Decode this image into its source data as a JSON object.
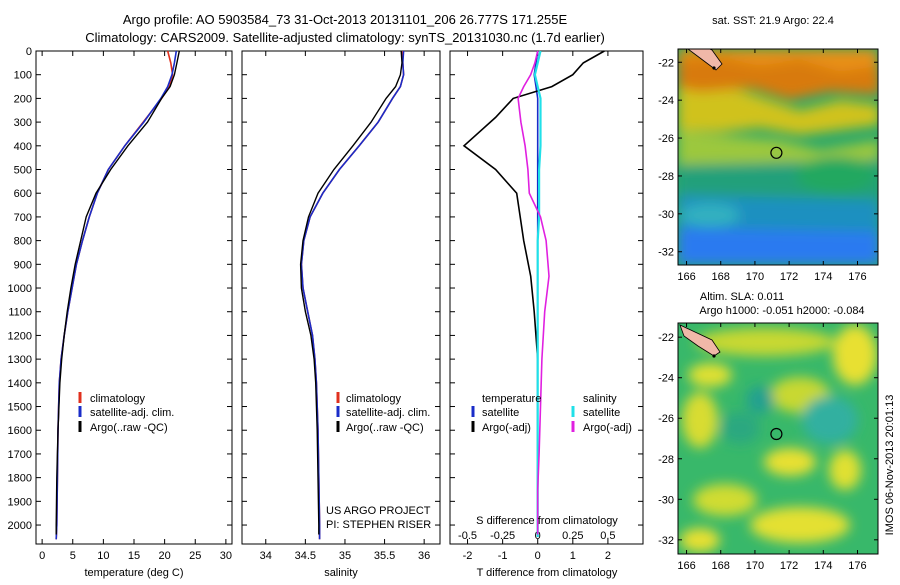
{
  "header": {
    "line1": "Argo profile: AO 5903584_73 31-Oct-2013 20131101_206 26.777S 171.255E",
    "line2": "Climatology: CARS2009. Satellite-adjusted climatology: synTS_20131030.nc (1.7d earlier)"
  },
  "colors": {
    "clim": "#e0301e",
    "sat": "#1a2cc8",
    "argo": "#000000",
    "magenta": "#e020e0",
    "cyan": "#20e0e8"
  },
  "chart_data": [
    {
      "type": "line",
      "xlabel": "temperature (deg C)",
      "ylabel": "",
      "xlim": [
        -1,
        31
      ],
      "ylim": [
        2080,
        0
      ],
      "xticks": [
        0,
        5,
        10,
        15,
        20,
        25,
        30
      ],
      "yticks": [
        0,
        100,
        200,
        300,
        400,
        500,
        600,
        700,
        800,
        900,
        1000,
        1100,
        1200,
        1300,
        1400,
        1500,
        1600,
        1700,
        1800,
        1900,
        2000
      ],
      "legend": [
        "climatology",
        "satellite-adj. clim.",
        "Argo(..raw -QC)"
      ],
      "series": [
        {
          "name": "climatology",
          "color": "clim",
          "x": [
            20.5,
            21,
            21.3,
            20.8,
            19.5,
            16.5,
            13.5,
            10.8,
            9,
            7.7,
            6.6,
            5.6,
            4.9,
            4.2,
            3.6,
            3.1,
            2.8,
            2.6,
            2.5,
            2.4,
            2.3
          ],
          "y": [
            0,
            50,
            100,
            150,
            200,
            300,
            400,
            500,
            600,
            700,
            800,
            900,
            1000,
            1100,
            1200,
            1300,
            1400,
            1600,
            1800,
            2000,
            2060
          ]
        },
        {
          "name": "satellite-adj. clim.",
          "color": "sat",
          "x": [
            21.9,
            21.6,
            21.2,
            20.5,
            19.4,
            16.6,
            13.5,
            10.8,
            9,
            7.7,
            6.6,
            5.6,
            4.9,
            4.2,
            3.6,
            3.1,
            2.8,
            2.6,
            2.5,
            2.4,
            2.3
          ],
          "y": [
            0,
            50,
            100,
            150,
            200,
            300,
            400,
            500,
            600,
            700,
            800,
            900,
            1000,
            1100,
            1200,
            1300,
            1400,
            1600,
            1800,
            2000,
            2060
          ]
        },
        {
          "name": "Argo(..raw -QC)",
          "color": "argo",
          "x": [
            22.4,
            22,
            21.6,
            20.9,
            19.5,
            17.2,
            14,
            11.2,
            8.8,
            7.2,
            6.3,
            5.4,
            4.7,
            4.1,
            3.6,
            3.2,
            2.9,
            2.6,
            2.4,
            2.3,
            2.3
          ],
          "y": [
            0,
            50,
            100,
            150,
            200,
            300,
            400,
            500,
            600,
            700,
            800,
            900,
            1000,
            1100,
            1200,
            1300,
            1400,
            1600,
            1800,
            2000,
            2040
          ]
        }
      ]
    },
    {
      "type": "line",
      "xlabel": "salinity",
      "xlim": [
        33.7,
        36.2
      ],
      "ylim": [
        2080,
        0
      ],
      "xticks": [
        34,
        34.5,
        35,
        35.5,
        36
      ],
      "legend": [
        "climatology",
        "satellite-adj. clim.",
        "Argo(..raw -QC)"
      ],
      "series": [
        {
          "name": "climatology",
          "color": "clim",
          "x": [
            35.72,
            35.73,
            35.74,
            35.7,
            35.6,
            35.42,
            35.18,
            34.93,
            34.72,
            34.56,
            34.48,
            34.45,
            34.47,
            34.53,
            34.59,
            34.62,
            34.64,
            34.66,
            34.67,
            34.68,
            34.68
          ],
          "y": [
            0,
            50,
            100,
            150,
            200,
            300,
            400,
            500,
            600,
            700,
            800,
            900,
            1000,
            1100,
            1200,
            1300,
            1400,
            1600,
            1800,
            2000,
            2060
          ]
        },
        {
          "name": "satellite-adj. clim.",
          "color": "sat",
          "x": [
            35.74,
            35.73,
            35.74,
            35.7,
            35.6,
            35.42,
            35.18,
            34.93,
            34.72,
            34.56,
            34.48,
            34.45,
            34.47,
            34.53,
            34.59,
            34.62,
            34.64,
            34.66,
            34.67,
            34.68,
            34.68
          ],
          "y": [
            0,
            50,
            100,
            150,
            200,
            300,
            400,
            500,
            600,
            700,
            800,
            900,
            1000,
            1100,
            1200,
            1300,
            1400,
            1600,
            1800,
            2000,
            2060
          ]
        },
        {
          "name": "Argo(..raw -QC)",
          "color": "argo",
          "x": [
            35.71,
            35.72,
            35.7,
            35.64,
            35.52,
            35.33,
            35.1,
            34.86,
            34.66,
            34.54,
            34.47,
            34.44,
            34.45,
            34.5,
            34.57,
            34.61,
            34.63,
            34.65,
            34.66,
            34.67,
            34.67
          ],
          "y": [
            0,
            50,
            100,
            150,
            200,
            300,
            400,
            500,
            600,
            700,
            800,
            900,
            1000,
            1100,
            1200,
            1300,
            1400,
            1600,
            1800,
            2000,
            2040
          ]
        }
      ]
    },
    {
      "type": "line",
      "xlabel": "T difference from climatology",
      "xlabel_top": "S difference from climatology",
      "xlim_T": [
        -2.5,
        3
      ],
      "xticks_T": [
        -2,
        -1,
        0,
        1,
        2
      ],
      "xlim_S": [
        -0.625,
        0.75
      ],
      "xticks_S": [
        -0.5,
        -0.25,
        0,
        0.25,
        0.5
      ],
      "ylim": [
        2080,
        0
      ],
      "legend": [
        "temperature",
        "satellite",
        "Argo(-adj)",
        "salinity",
        "satellite",
        "Argo(-adj)"
      ],
      "series": [
        {
          "name": "temperature satellite",
          "color": "sat",
          "axis": "T",
          "x": [
            0,
            -0.05,
            -0.1,
            -0.05,
            0,
            0,
            0,
            0,
            0,
            0,
            0,
            0,
            0,
            0,
            0,
            0,
            0,
            0,
            0
          ],
          "y": [
            0,
            50,
            100,
            150,
            200,
            300,
            400,
            500,
            600,
            700,
            800,
            1000,
            1200,
            1400,
            1600,
            1800,
            1900,
            2000,
            2050
          ]
        },
        {
          "name": "temperature Argo(-adj)",
          "color": "argo",
          "axis": "T",
          "x": [
            1.9,
            1.3,
            1.0,
            0.4,
            -0.7,
            -1.2,
            -2.1,
            -1.2,
            -0.6,
            -0.5,
            -0.4,
            -0.2,
            -0.1,
            0,
            0,
            0,
            0,
            0,
            0
          ],
          "y": [
            0,
            50,
            100,
            150,
            200,
            280,
            400,
            500,
            600,
            700,
            800,
            950,
            1100,
            1300,
            1500,
            1700,
            1850,
            2000,
            2040
          ]
        },
        {
          "name": "salinity satellite",
          "color": "cyan",
          "axis": "S",
          "x": [
            0.02,
            0,
            -0.02,
            0,
            0.02,
            0.02,
            0.02,
            0.01,
            0.01,
            0.01,
            0,
            0,
            0,
            0,
            0,
            0,
            0,
            0,
            0
          ],
          "y": [
            0,
            50,
            100,
            150,
            200,
            300,
            400,
            500,
            600,
            700,
            800,
            1000,
            1200,
            1400,
            1600,
            1800,
            1900,
            2000,
            2050
          ]
        },
        {
          "name": "salinity Argo(-adj)",
          "color": "magenta",
          "axis": "S",
          "x": [
            0,
            -0.02,
            -0.05,
            -0.1,
            -0.14,
            -0.12,
            -0.09,
            -0.07,
            -0.06,
            0.02,
            0.06,
            0.08,
            0.05,
            0.03,
            0.02,
            0.01,
            0,
            0,
            0
          ],
          "y": [
            0,
            50,
            100,
            150,
            200,
            300,
            400,
            500,
            600,
            700,
            800,
            950,
            1100,
            1300,
            1500,
            1700,
            1850,
            2000,
            2040
          ]
        }
      ]
    },
    {
      "type": "heatmap",
      "title": "sat. SST: 21.9 Argo: 22.4",
      "xlim": [
        165.5,
        177.2
      ],
      "ylim": [
        -32.7,
        -21.3
      ],
      "xticks": [
        166,
        168,
        170,
        172,
        174,
        176
      ],
      "yticks": [
        -22,
        -24,
        -26,
        -28,
        -30,
        -32
      ],
      "argo_location": [
        171.255,
        -26.777
      ]
    },
    {
      "type": "heatmap",
      "title": "Altim. SLA: 0.011",
      "subtitle": "Argo h1000: -0.051 h2000: -0.084",
      "xlim": [
        165.5,
        177.2
      ],
      "ylim": [
        -32.7,
        -21.3
      ],
      "xticks": [
        166,
        168,
        170,
        172,
        174,
        176
      ],
      "yticks": [
        -22,
        -24,
        -26,
        -28,
        -30,
        -32
      ],
      "argo_location": [
        171.255,
        -26.777
      ]
    }
  ],
  "panel_text": {
    "project_line1": "US ARGO PROJECT",
    "project_line2": "PI: STEPHEN RISER",
    "stamp": "IMOS 06-Nov-2013 20:01:13"
  }
}
